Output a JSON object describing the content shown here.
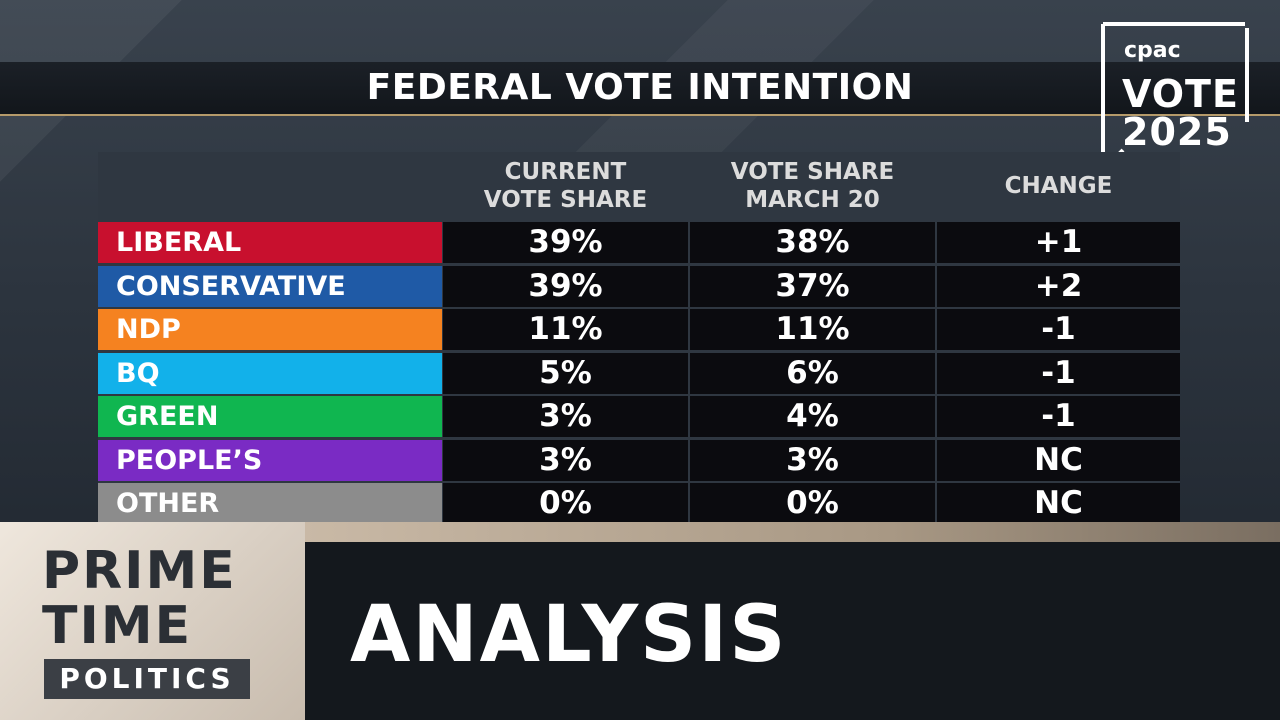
{
  "broadcast": {
    "title": "FEDERAL VOTE INTENTION",
    "logo": {
      "brand": "cpac",
      "line1": "VOTE",
      "line2": "2025"
    },
    "show": {
      "line1": "PRIME",
      "line2": "TIME",
      "line3": "POLITICS"
    },
    "segment": "ANALYSIS"
  },
  "columns": {
    "current_line1": "CURRENT",
    "current_line2": "VOTE SHARE",
    "march_line1": "VOTE SHARE",
    "march_line2": "MARCH 20",
    "change": "CHANGE"
  },
  "chart_data": {
    "type": "table",
    "title": "FEDERAL VOTE INTENTION",
    "columns": [
      "CURRENT VOTE SHARE",
      "VOTE SHARE MARCH 20",
      "CHANGE"
    ],
    "rows": [
      {
        "party": "LIBERAL",
        "color": "#c8102e",
        "current": "39%",
        "march20": "38%",
        "change": "+1"
      },
      {
        "party": "CONSERVATIVE",
        "color": "#1f5aa6",
        "current": "39%",
        "march20": "37%",
        "change": "+2"
      },
      {
        "party": "NDP",
        "color": "#f58220",
        "current": "11%",
        "march20": "11%",
        "change": "-1"
      },
      {
        "party": "BQ",
        "color": "#12b1ea",
        "current": "5%",
        "march20": "6%",
        "change": "-1"
      },
      {
        "party": "GREEN",
        "color": "#10b650",
        "current": "3%",
        "march20": "4%",
        "change": "-1"
      },
      {
        "party": "PEOPLE’S",
        "color": "#7a2bc4",
        "current": "3%",
        "march20": "3%",
        "change": "NC"
      },
      {
        "party": "OTHER",
        "color": "#8c8c8c",
        "current": "0%",
        "march20": "0%",
        "change": "NC"
      }
    ]
  }
}
